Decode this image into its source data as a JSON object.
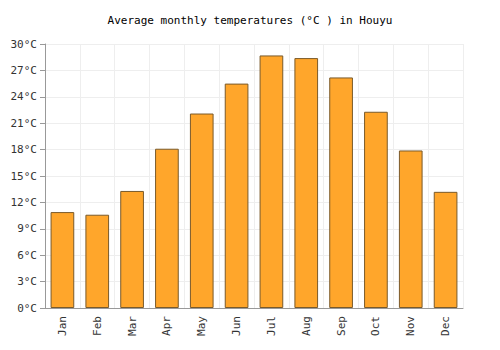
{
  "chart_data": {
    "type": "bar",
    "title": "Average monthly temperatures (°C ) in Houyu",
    "categories": [
      "Jan",
      "Feb",
      "Mar",
      "Apr",
      "May",
      "Jun",
      "Jul",
      "Aug",
      "Sep",
      "Oct",
      "Nov",
      "Dec"
    ],
    "values": [
      10.9,
      10.6,
      13.3,
      18.1,
      22.1,
      25.5,
      28.7,
      28.4,
      26.2,
      22.3,
      17.9,
      13.2
    ],
    "color": "#ffa62b",
    "ylim": [
      0,
      30
    ],
    "yticks": [
      {
        "value": 0,
        "label": "0°C"
      },
      {
        "value": 3,
        "label": "3°C"
      },
      {
        "value": 6,
        "label": "6°C"
      },
      {
        "value": 9,
        "label": "9°C"
      },
      {
        "value": 12,
        "label": "12°C"
      },
      {
        "value": 15,
        "label": "15°C"
      },
      {
        "value": 18,
        "label": "18°C"
      },
      {
        "value": 21,
        "label": "21°C"
      },
      {
        "value": 24,
        "label": "24°C"
      },
      {
        "value": 27,
        "label": "27°C"
      },
      {
        "value": 30,
        "label": "30°C"
      }
    ],
    "grid": true
  }
}
